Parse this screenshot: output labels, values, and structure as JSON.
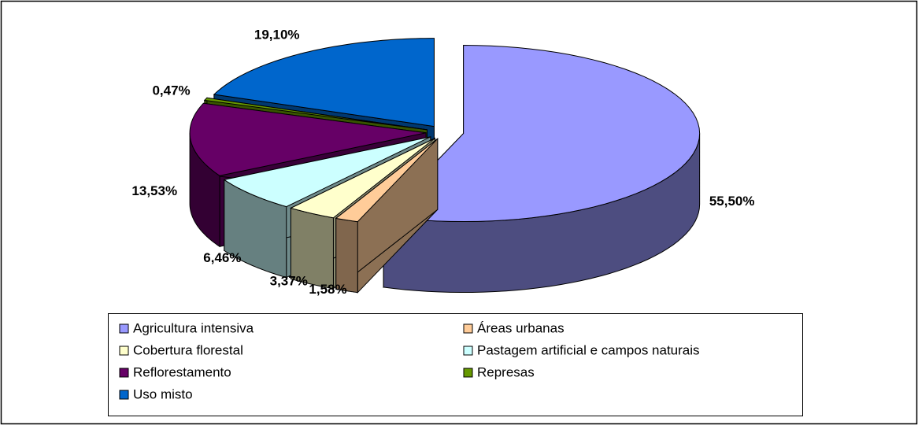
{
  "chart_data": {
    "type": "pie",
    "categories": [
      "Agricultura intensiva",
      "Áreas urbanas",
      "Cobertura florestal",
      "Pastagem artificial e campos naturais",
      "Reflorestamento",
      "Represas",
      "Uso misto"
    ],
    "values": [
      55.5,
      1.58,
      3.37,
      6.46,
      13.53,
      0.47,
      19.1
    ],
    "value_labels": [
      "55,50%",
      "1,58%",
      "3,37%",
      "6,46%",
      "13,53%",
      "0,47%",
      "19,10%"
    ],
    "colors": [
      "#9999ff",
      "#ffcc99",
      "#ffffcc",
      "#ccffff",
      "#660066",
      "#669900",
      "#0066cc"
    ],
    "legend": "bottom"
  }
}
